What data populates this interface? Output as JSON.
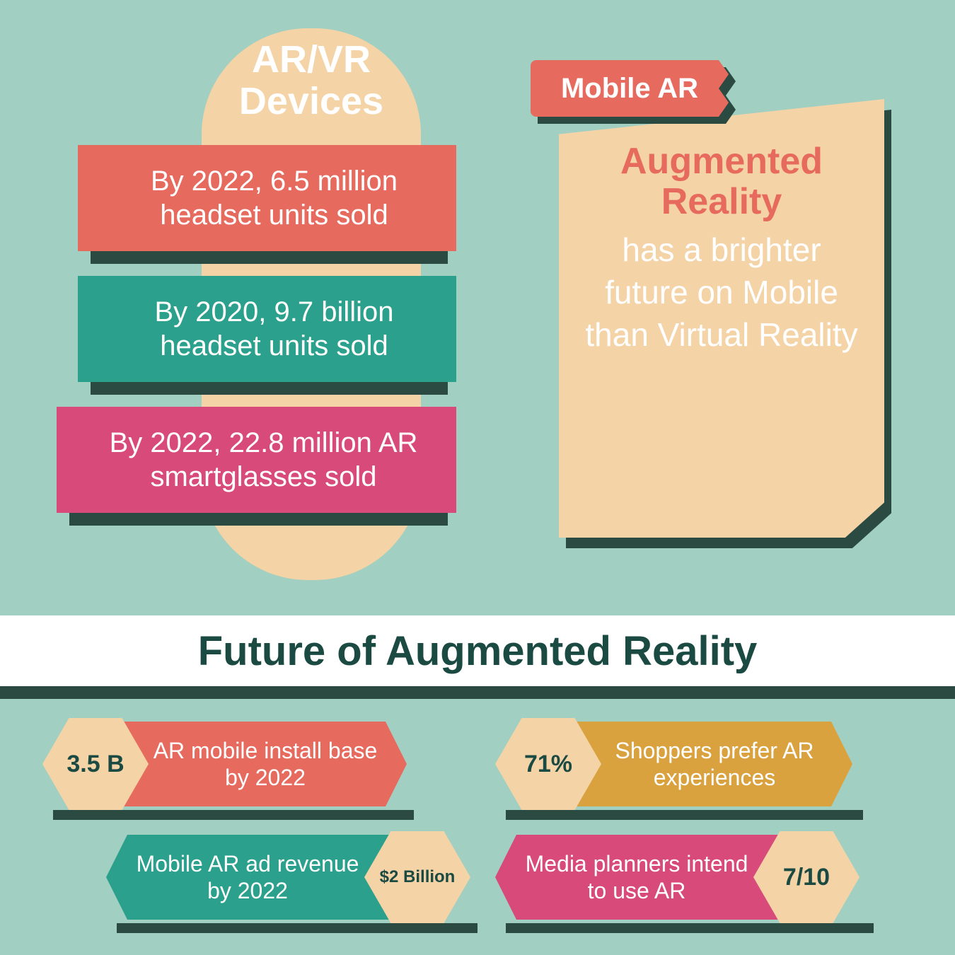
{
  "background_color": "#a1cfc2",
  "shadow_color": "#2a4a42",
  "cream_color": "#f4d3a7",
  "arvr": {
    "title": "AR/VR Devices",
    "title_fontsize": 54,
    "title_color": "#ffffff",
    "pill_color": "#f4d3a7",
    "ribbons": [
      {
        "text": "By 2022, 6.5 million headset units sold",
        "color": "#e66a5e"
      },
      {
        "text": "By 2020, 9.7 billion headset units sold",
        "color": "#2ba08c"
      },
      {
        "text": "By 2022, 22.8 million AR smartglasses sold",
        "color": "#d84a7a"
      }
    ],
    "ribbon_fontsize": 40
  },
  "mobile_ar": {
    "tag": "Mobile AR",
    "tag_color": "#e66a5e",
    "panel_color": "#f4d3a7",
    "title": "Augmented Reality",
    "title_color": "#e66a5e",
    "subtitle": "has a brighter future on Mobile than Virtual Reality",
    "subtitle_color": "#ffffff",
    "title_fontsize": 52,
    "subtitle_fontsize": 46
  },
  "section_title": {
    "text": "Future of Augmented Reality",
    "color": "#1a4a42",
    "background": "#ffffff",
    "fontsize": 58
  },
  "stats": [
    {
      "value": "3.5 B",
      "label": "AR mobile install base by 2022",
      "color": "#e66a5e",
      "hex_left": true
    },
    {
      "value": "71%",
      "label": "Shoppers prefer AR experiences",
      "color": "#d9a23e",
      "hex_left": true
    },
    {
      "value": "$2 Billion",
      "label": "Mobile AR ad revenue by 2022",
      "color": "#2ba08c",
      "hex_left": false
    },
    {
      "value": "7/10",
      "label": "Media planners intend to use AR",
      "color": "#d84a7a",
      "hex_left": false
    }
  ],
  "stat_value_fontsize": 34,
  "stat_label_fontsize": 32,
  "hex_color": "#f4d3a7",
  "hex_text_color": "#1a4a42"
}
